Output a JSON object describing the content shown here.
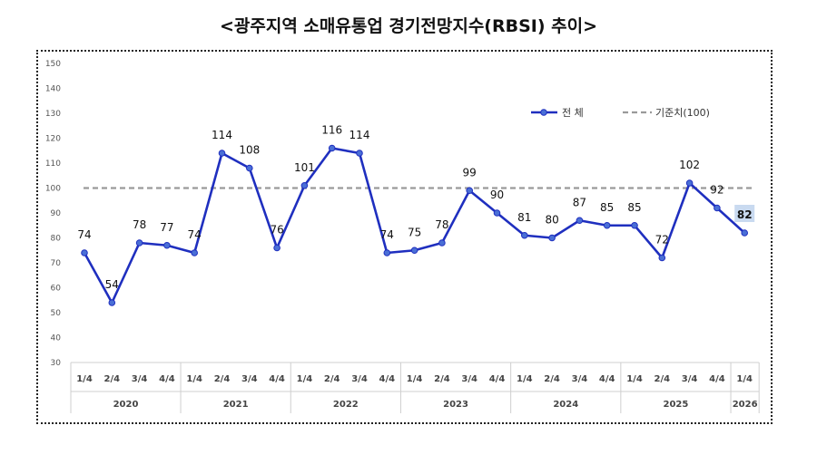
{
  "chart_data": {
    "type": "line",
    "title": "<광주지역 소매유통업 경기전망지수(RBSI) 추이>",
    "categories": [
      "1/4",
      "2/4",
      "3/4",
      "4/4",
      "1/4",
      "2/4",
      "3/4",
      "4/4",
      "1/4",
      "2/4",
      "3/4",
      "4/4",
      "1/4",
      "2/4",
      "3/4",
      "4/4",
      "1/4",
      "2/4",
      "3/4",
      "4/4",
      "1/4",
      "2/4",
      "3/4",
      "4/4",
      "1/4"
    ],
    "years": [
      {
        "label": "2020",
        "count": 4
      },
      {
        "label": "2021",
        "count": 4
      },
      {
        "label": "2022",
        "count": 4
      },
      {
        "label": "2023",
        "count": 4
      },
      {
        "label": "2024",
        "count": 4
      },
      {
        "label": "2025",
        "count": 4
      },
      {
        "label": "2026",
        "count": 1
      }
    ],
    "series": [
      {
        "name": "전 체",
        "values": [
          74,
          54,
          78,
          77,
          74,
          114,
          108,
          76,
          101,
          116,
          114,
          74,
          75,
          78,
          99,
          90,
          81,
          80,
          87,
          85,
          85,
          72,
          102,
          92,
          82
        ]
      }
    ],
    "reference": {
      "name": "기준치(100)",
      "value": 100
    },
    "yticks": [
      30,
      40,
      50,
      60,
      70,
      80,
      90,
      100,
      110,
      120,
      130,
      140,
      150
    ],
    "ylim": [
      30,
      150
    ],
    "highlight_last": true,
    "colors": {
      "series": "#1f2fbf",
      "marker": "#4a6fd6",
      "reference": "#9a9a9a",
      "highlight": "#c9daf0"
    }
  }
}
